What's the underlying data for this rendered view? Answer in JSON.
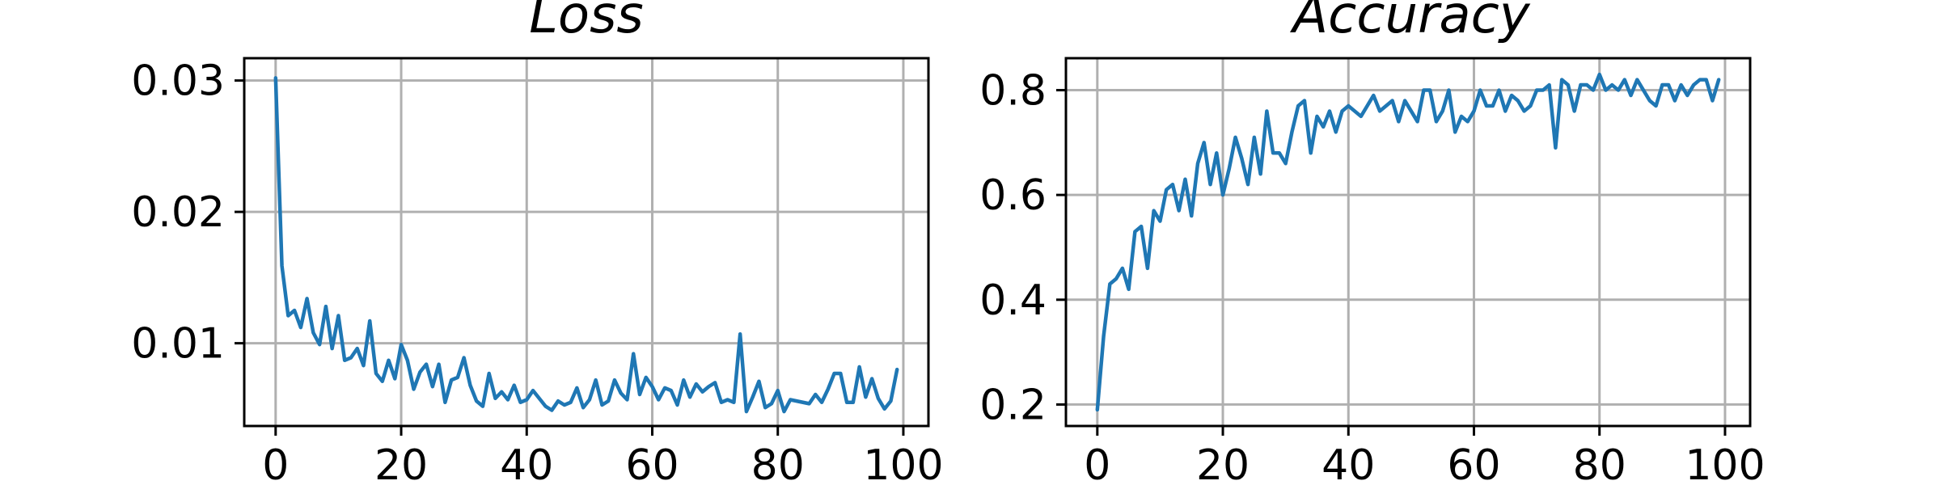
{
  "chart_data": [
    {
      "type": "line",
      "title": "Loss",
      "xlabel": "",
      "ylabel": "",
      "xlim": [
        -5,
        104
      ],
      "ylim": [
        0.0037,
        0.0317
      ],
      "xticks": [
        0,
        20,
        40,
        60,
        80,
        100
      ],
      "yticks": [
        0.01,
        0.02,
        0.03
      ],
      "xtick_labels": [
        "0",
        "20",
        "40",
        "60",
        "80",
        "100"
      ],
      "ytick_labels": [
        "0.01",
        "0.02",
        "0.03"
      ],
      "grid": true,
      "color": "#1f77b4",
      "series": [
        {
          "x": [
            0,
            1,
            2,
            3,
            4,
            5,
            6,
            7,
            8,
            9,
            10,
            11,
            12,
            13,
            14,
            15,
            16,
            17,
            18,
            19,
            20,
            21,
            22,
            23,
            24,
            25,
            26,
            27,
            28,
            29,
            30,
            31,
            32,
            33,
            34,
            35,
            36,
            37,
            38,
            39,
            40,
            41,
            42,
            43,
            44,
            45,
            46,
            47,
            48,
            49,
            50,
            51,
            52,
            53,
            54,
            55,
            56,
            57,
            58,
            59,
            60,
            61,
            62,
            63,
            64,
            65,
            66,
            67,
            68,
            69,
            70,
            71,
            72,
            73,
            74,
            75,
            76,
            77,
            78,
            79,
            80,
            81,
            82,
            83,
            84,
            85,
            86,
            87,
            88,
            89,
            90,
            91,
            92,
            93,
            94,
            95,
            96,
            97,
            98,
            99
          ],
          "values": [
            0.0302,
            0.0159,
            0.0121,
            0.0125,
            0.0112,
            0.0134,
            0.0108,
            0.0099,
            0.0128,
            0.0096,
            0.0121,
            0.0087,
            0.0089,
            0.0096,
            0.0083,
            0.0117,
            0.0077,
            0.0071,
            0.0087,
            0.0073,
            0.0099,
            0.0087,
            0.0065,
            0.0078,
            0.0084,
            0.0067,
            0.0084,
            0.0055,
            0.0072,
            0.0074,
            0.0089,
            0.0068,
            0.0056,
            0.0052,
            0.0077,
            0.0058,
            0.0063,
            0.0057,
            0.0068,
            0.0055,
            0.0057,
            0.0064,
            0.0058,
            0.0052,
            0.0049,
            0.0056,
            0.0053,
            0.0055,
            0.0066,
            0.0051,
            0.0057,
            0.0072,
            0.0053,
            0.0056,
            0.0072,
            0.0062,
            0.0057,
            0.0092,
            0.0061,
            0.0074,
            0.0067,
            0.0057,
            0.0066,
            0.0064,
            0.0053,
            0.0072,
            0.0059,
            0.0069,
            0.0063,
            0.0067,
            0.007,
            0.0055,
            0.0057,
            0.0055,
            0.0107,
            0.0048,
            0.0059,
            0.0071,
            0.0051,
            0.0054,
            0.0064,
            0.0048,
            0.0057,
            0.0056,
            0.0055,
            0.0054,
            0.0061,
            0.0055,
            0.0065,
            0.0077,
            0.0077,
            0.0055,
            0.0055,
            0.0082,
            0.0059,
            0.0073,
            0.0058,
            0.005,
            0.0056,
            0.008
          ]
        }
      ]
    },
    {
      "type": "line",
      "title": "Accuracy",
      "xlabel": "",
      "ylabel": "",
      "xlim": [
        -5,
        104
      ],
      "ylim": [
        0.159,
        0.861
      ],
      "xticks": [
        0,
        20,
        40,
        60,
        80,
        100
      ],
      "yticks": [
        0.2,
        0.4,
        0.6,
        0.8
      ],
      "xtick_labels": [
        "0",
        "20",
        "40",
        "60",
        "80",
        "100"
      ],
      "ytick_labels": [
        "0.2",
        "0.4",
        "0.6",
        "0.8"
      ],
      "grid": true,
      "color": "#1f77b4",
      "series": [
        {
          "x": [
            0,
            1,
            2,
            3,
            4,
            5,
            6,
            7,
            8,
            9,
            10,
            11,
            12,
            13,
            14,
            15,
            16,
            17,
            18,
            19,
            20,
            21,
            22,
            23,
            24,
            25,
            26,
            27,
            28,
            29,
            30,
            31,
            32,
            33,
            34,
            35,
            36,
            37,
            38,
            39,
            40,
            41,
            42,
            43,
            44,
            45,
            46,
            47,
            48,
            49,
            50,
            51,
            52,
            53,
            54,
            55,
            56,
            57,
            58,
            59,
            60,
            61,
            62,
            63,
            64,
            65,
            66,
            67,
            68,
            69,
            70,
            71,
            72,
            73,
            74,
            75,
            76,
            77,
            78,
            79,
            80,
            81,
            82,
            83,
            84,
            85,
            86,
            87,
            88,
            89,
            90,
            91,
            92,
            93,
            94,
            95,
            96,
            97,
            98,
            99
          ],
          "values": [
            0.19,
            0.33,
            0.43,
            0.44,
            0.46,
            0.42,
            0.53,
            0.54,
            0.46,
            0.57,
            0.55,
            0.61,
            0.62,
            0.57,
            0.63,
            0.56,
            0.66,
            0.7,
            0.62,
            0.68,
            0.6,
            0.65,
            0.71,
            0.67,
            0.62,
            0.71,
            0.64,
            0.76,
            0.68,
            0.68,
            0.66,
            0.72,
            0.77,
            0.78,
            0.68,
            0.75,
            0.73,
            0.76,
            0.72,
            0.76,
            0.77,
            0.76,
            0.75,
            0.77,
            0.79,
            0.76,
            0.77,
            0.78,
            0.74,
            0.78,
            0.76,
            0.74,
            0.8,
            0.8,
            0.74,
            0.76,
            0.8,
            0.72,
            0.75,
            0.74,
            0.76,
            0.8,
            0.77,
            0.77,
            0.8,
            0.76,
            0.79,
            0.78,
            0.76,
            0.77,
            0.8,
            0.8,
            0.81,
            0.69,
            0.82,
            0.81,
            0.76,
            0.81,
            0.81,
            0.8,
            0.83,
            0.8,
            0.81,
            0.8,
            0.82,
            0.79,
            0.82,
            0.8,
            0.78,
            0.77,
            0.81,
            0.81,
            0.78,
            0.81,
            0.79,
            0.81,
            0.82,
            0.82,
            0.78,
            0.82
          ]
        }
      ]
    }
  ]
}
